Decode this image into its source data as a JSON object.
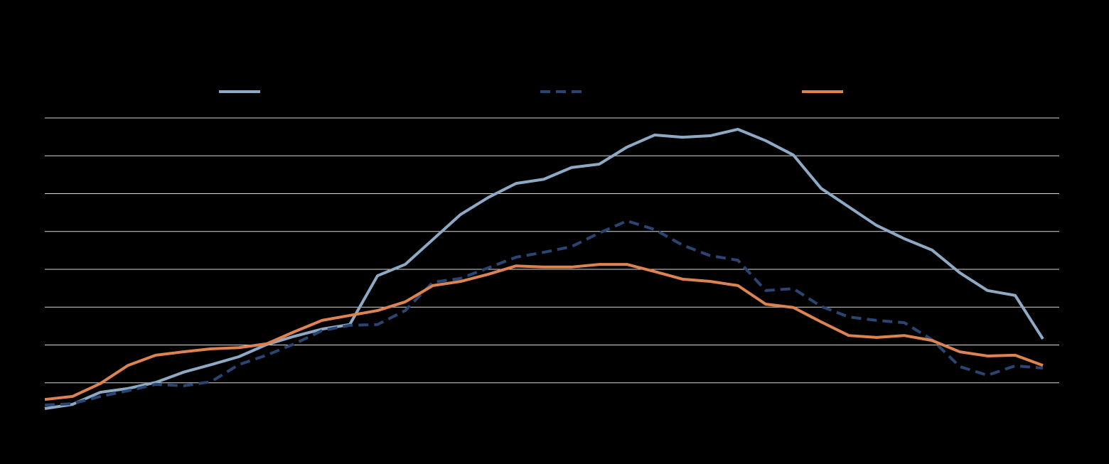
{
  "chart_data": {
    "type": "line",
    "categories": [
      null,
      null,
      null,
      null,
      null,
      null,
      null,
      null,
      null,
      null,
      null,
      null,
      null,
      null,
      null,
      null,
      null,
      null,
      null,
      null,
      null,
      null,
      null,
      null,
      null,
      null,
      null,
      null,
      null,
      null,
      null,
      null,
      null,
      null,
      null,
      null,
      null
    ],
    "series": [
      {
        "color": "#8ea9c3",
        "dash": false,
        "values": [
          0.32,
          0.43,
          0.75,
          0.85,
          1.01,
          1.28,
          1.48,
          1.69,
          2.01,
          2.23,
          2.42,
          2.54,
          3.83,
          4.13,
          4.79,
          5.45,
          5.9,
          6.27,
          6.38,
          6.69,
          6.78,
          7.23,
          7.55,
          7.49,
          7.53,
          7.7,
          7.4,
          7.02,
          6.14,
          5.65,
          5.16,
          4.81,
          4.51,
          3.91,
          3.44,
          3.31,
          2.16
        ]
      },
      {
        "color": "#2b4572",
        "dash": true,
        "values": [
          0.41,
          0.45,
          0.64,
          0.79,
          0.96,
          0.92,
          1.03,
          1.48,
          1.73,
          2.03,
          2.38,
          2.52,
          2.54,
          2.91,
          3.66,
          3.76,
          4.04,
          4.32,
          4.45,
          4.6,
          4.96,
          5.28,
          5.05,
          4.64,
          4.36,
          4.24,
          3.44,
          3.49,
          3.02,
          2.74,
          2.65,
          2.59,
          2.14,
          1.43,
          1.2,
          1.45,
          1.39
        ]
      },
      {
        "color": "#dd8352",
        "dash": false,
        "values": [
          0.56,
          0.64,
          0.98,
          1.46,
          1.73,
          1.82,
          1.9,
          1.93,
          2.03,
          2.35,
          2.65,
          2.78,
          2.91,
          3.14,
          3.57,
          3.68,
          3.87,
          4.09,
          4.06,
          4.06,
          4.13,
          4.13,
          3.94,
          3.74,
          3.68,
          3.57,
          3.08,
          2.99,
          2.61,
          2.25,
          2.2,
          2.25,
          2.12,
          1.82,
          1.71,
          1.73,
          1.46
        ]
      }
    ],
    "ylim": [
      0,
      8
    ],
    "yticks": [
      1,
      2,
      3,
      4,
      5,
      6,
      7,
      8
    ],
    "grid": true,
    "legend": "top"
  }
}
